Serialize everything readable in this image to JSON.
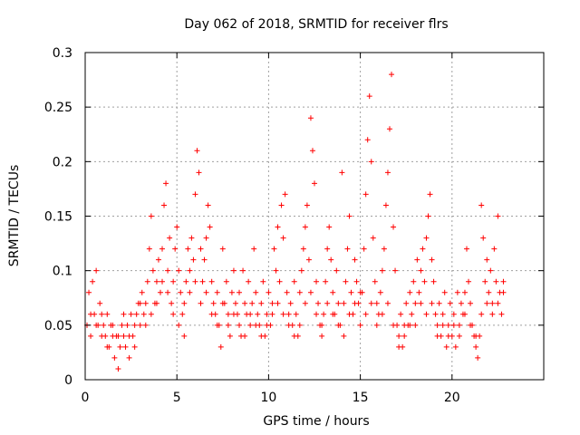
{
  "chart_data": {
    "type": "scatter",
    "title": "Day 062 of 2018, SRMTID for receiver flrs",
    "xlabel": "GPS time / hours",
    "ylabel": "SRMTID / TECUs",
    "xlim": [
      0,
      25
    ],
    "ylim": [
      0,
      0.3
    ],
    "x_ticks": [
      "0",
      "5",
      "10",
      "15",
      "20"
    ],
    "y_ticks": [
      "0",
      "0.05",
      "0.1",
      "0.15",
      "0.2",
      "0.25",
      "0.3"
    ],
    "grid": true,
    "marker": "plus",
    "color": "#ff0000",
    "series": [
      {
        "points": [
          [
            0.1,
            0.05
          ],
          [
            0.2,
            0.08
          ],
          [
            0.3,
            0.06
          ],
          [
            0.4,
            0.09
          ],
          [
            0.5,
            0.06
          ],
          [
            0.6,
            0.1
          ],
          [
            0.7,
            0.05
          ],
          [
            0.8,
            0.07
          ],
          [
            0.9,
            0.06
          ],
          [
            1.0,
            0.05
          ],
          [
            1.1,
            0.04
          ],
          [
            1.2,
            0.06
          ],
          [
            1.3,
            0.03
          ],
          [
            1.4,
            0.05
          ],
          [
            1.5,
            0.04
          ],
          [
            1.6,
            0.02
          ],
          [
            1.7,
            0.04
          ],
          [
            1.8,
            0.01
          ],
          [
            1.9,
            0.03
          ],
          [
            2.0,
            0.05
          ],
          [
            2.1,
            0.04
          ],
          [
            2.2,
            0.03
          ],
          [
            2.3,
            0.05
          ],
          [
            2.4,
            0.02
          ],
          [
            2.5,
            0.06
          ],
          [
            2.6,
            0.04
          ],
          [
            2.7,
            0.05
          ],
          [
            2.8,
            0.06
          ],
          [
            2.9,
            0.07
          ],
          [
            3.0,
            0.05
          ],
          [
            3.1,
            0.08
          ],
          [
            3.2,
            0.06
          ],
          [
            3.3,
            0.07
          ],
          [
            3.4,
            0.09
          ],
          [
            3.5,
            0.12
          ],
          [
            3.6,
            0.15
          ],
          [
            3.7,
            0.1
          ],
          [
            3.8,
            0.07
          ],
          [
            3.9,
            0.09
          ],
          [
            4.0,
            0.11
          ],
          [
            4.1,
            0.08
          ],
          [
            4.2,
            0.12
          ],
          [
            4.3,
            0.16
          ],
          [
            4.4,
            0.18
          ],
          [
            4.5,
            0.1
          ],
          [
            4.6,
            0.13
          ],
          [
            4.7,
            0.07
          ],
          [
            4.8,
            0.09
          ],
          [
            4.9,
            0.12
          ],
          [
            5.0,
            0.14
          ],
          [
            5.1,
            0.1
          ],
          [
            5.2,
            0.08
          ],
          [
            5.3,
            0.06
          ],
          [
            5.4,
            0.04
          ],
          [
            5.5,
            0.09
          ],
          [
            5.6,
            0.12
          ],
          [
            5.7,
            0.1
          ],
          [
            5.8,
            0.13
          ],
          [
            5.9,
            0.11
          ],
          [
            6.0,
            0.17
          ],
          [
            6.1,
            0.21
          ],
          [
            6.2,
            0.19
          ],
          [
            6.3,
            0.12
          ],
          [
            6.4,
            0.09
          ],
          [
            6.5,
            0.11
          ],
          [
            6.6,
            0.13
          ],
          [
            6.7,
            0.16
          ],
          [
            6.8,
            0.14
          ],
          [
            6.9,
            0.09
          ],
          [
            7.0,
            0.07
          ],
          [
            7.1,
            0.06
          ],
          [
            7.2,
            0.08
          ],
          [
            7.3,
            0.05
          ],
          [
            7.4,
            0.03
          ],
          [
            7.5,
            0.12
          ],
          [
            7.6,
            0.07
          ],
          [
            7.7,
            0.09
          ],
          [
            7.8,
            0.06
          ],
          [
            7.9,
            0.04
          ],
          [
            8.0,
            0.08
          ],
          [
            8.1,
            0.1
          ],
          [
            8.2,
            0.07
          ],
          [
            8.3,
            0.06
          ],
          [
            8.4,
            0.08
          ],
          [
            8.5,
            0.04
          ],
          [
            8.6,
            0.1
          ],
          [
            8.7,
            0.07
          ],
          [
            8.8,
            0.06
          ],
          [
            8.9,
            0.09
          ],
          [
            9.0,
            0.05
          ],
          [
            9.1,
            0.07
          ],
          [
            9.2,
            0.12
          ],
          [
            9.3,
            0.08
          ],
          [
            9.4,
            0.06
          ],
          [
            9.5,
            0.05
          ],
          [
            9.6,
            0.07
          ],
          [
            9.7,
            0.09
          ],
          [
            9.8,
            0.04
          ],
          [
            9.9,
            0.06
          ],
          [
            10.0,
            0.08
          ],
          [
            10.1,
            0.05
          ],
          [
            10.2,
            0.07
          ],
          [
            10.3,
            0.12
          ],
          [
            10.4,
            0.1
          ],
          [
            10.5,
            0.14
          ],
          [
            10.6,
            0.09
          ],
          [
            10.7,
            0.16
          ],
          [
            10.8,
            0.13
          ],
          [
            10.9,
            0.17
          ],
          [
            11.0,
            0.08
          ],
          [
            11.1,
            0.06
          ],
          [
            11.2,
            0.07
          ],
          [
            11.3,
            0.05
          ],
          [
            11.4,
            0.09
          ],
          [
            11.5,
            0.06
          ],
          [
            11.6,
            0.04
          ],
          [
            11.7,
            0.08
          ],
          [
            11.8,
            0.1
          ],
          [
            11.9,
            0.12
          ],
          [
            12.0,
            0.14
          ],
          [
            12.1,
            0.16
          ],
          [
            12.2,
            0.11
          ],
          [
            12.3,
            0.24
          ],
          [
            12.4,
            0.21
          ],
          [
            12.5,
            0.18
          ],
          [
            12.6,
            0.09
          ],
          [
            12.7,
            0.07
          ],
          [
            12.8,
            0.05
          ],
          [
            12.9,
            0.04
          ],
          [
            13.0,
            0.06
          ],
          [
            13.1,
            0.09
          ],
          [
            13.2,
            0.12
          ],
          [
            13.3,
            0.14
          ],
          [
            13.4,
            0.11
          ],
          [
            13.5,
            0.08
          ],
          [
            13.6,
            0.06
          ],
          [
            13.7,
            0.1
          ],
          [
            13.8,
            0.07
          ],
          [
            13.9,
            0.05
          ],
          [
            14.0,
            0.19
          ],
          [
            14.1,
            0.07
          ],
          [
            14.2,
            0.09
          ],
          [
            14.3,
            0.12
          ],
          [
            14.4,
            0.15
          ],
          [
            14.5,
            0.08
          ],
          [
            14.6,
            0.06
          ],
          [
            14.7,
            0.11
          ],
          [
            14.8,
            0.09
          ],
          [
            14.9,
            0.07
          ],
          [
            15.0,
            0.05
          ],
          [
            15.1,
            0.08
          ],
          [
            15.2,
            0.12
          ],
          [
            15.3,
            0.17
          ],
          [
            15.4,
            0.22
          ],
          [
            15.5,
            0.26
          ],
          [
            15.6,
            0.2
          ],
          [
            15.7,
            0.13
          ],
          [
            15.8,
            0.09
          ],
          [
            15.9,
            0.07
          ],
          [
            16.0,
            0.06
          ],
          [
            16.1,
            0.08
          ],
          [
            16.2,
            0.1
          ],
          [
            16.3,
            0.12
          ],
          [
            16.4,
            0.16
          ],
          [
            16.5,
            0.19
          ],
          [
            16.6,
            0.23
          ],
          [
            16.7,
            0.28
          ],
          [
            16.8,
            0.14
          ],
          [
            16.9,
            0.1
          ],
          [
            17.0,
            0.05
          ],
          [
            17.1,
            0.04
          ],
          [
            17.2,
            0.06
          ],
          [
            17.3,
            0.03
          ],
          [
            17.4,
            0.05
          ],
          [
            17.5,
            0.07
          ],
          [
            17.6,
            0.05
          ],
          [
            17.7,
            0.08
          ],
          [
            17.8,
            0.06
          ],
          [
            17.9,
            0.09
          ],
          [
            18.0,
            0.07
          ],
          [
            18.1,
            0.11
          ],
          [
            18.2,
            0.08
          ],
          [
            18.3,
            0.1
          ],
          [
            18.4,
            0.12
          ],
          [
            18.5,
            0.09
          ],
          [
            18.6,
            0.13
          ],
          [
            18.7,
            0.15
          ],
          [
            18.8,
            0.17
          ],
          [
            18.9,
            0.11
          ],
          [
            19.0,
            0.09
          ],
          [
            19.1,
            0.06
          ],
          [
            19.2,
            0.05
          ],
          [
            19.3,
            0.07
          ],
          [
            19.4,
            0.04
          ],
          [
            19.5,
            0.06
          ],
          [
            19.6,
            0.08
          ],
          [
            19.7,
            0.03
          ],
          [
            19.8,
            0.05
          ],
          [
            19.9,
            0.07
          ],
          [
            20.0,
            0.04
          ],
          [
            20.1,
            0.06
          ],
          [
            20.2,
            0.03
          ],
          [
            20.3,
            0.08
          ],
          [
            20.4,
            0.05
          ],
          [
            20.5,
            0.07
          ],
          [
            20.6,
            0.06
          ],
          [
            20.7,
            0.08
          ],
          [
            20.8,
            0.12
          ],
          [
            20.9,
            0.09
          ],
          [
            21.0,
            0.07
          ],
          [
            21.1,
            0.05
          ],
          [
            21.2,
            0.04
          ],
          [
            21.3,
            0.03
          ],
          [
            21.4,
            0.02
          ],
          [
            21.5,
            0.04
          ],
          [
            21.6,
            0.16
          ],
          [
            21.7,
            0.13
          ],
          [
            21.8,
            0.09
          ],
          [
            21.9,
            0.11
          ],
          [
            22.0,
            0.08
          ],
          [
            22.1,
            0.1
          ],
          [
            22.2,
            0.07
          ],
          [
            22.3,
            0.12
          ],
          [
            22.4,
            0.09
          ],
          [
            22.5,
            0.15
          ],
          [
            22.6,
            0.08
          ],
          [
            22.7,
            0.06
          ],
          [
            22.8,
            0.09
          ],
          [
            0.3,
            0.04
          ],
          [
            0.6,
            0.05
          ],
          [
            0.9,
            0.04
          ],
          [
            1.2,
            0.03
          ],
          [
            1.5,
            0.05
          ],
          [
            1.8,
            0.04
          ],
          [
            2.1,
            0.06
          ],
          [
            2.4,
            0.04
          ],
          [
            2.7,
            0.03
          ],
          [
            3.0,
            0.07
          ],
          [
            3.3,
            0.05
          ],
          [
            3.6,
            0.06
          ],
          [
            3.9,
            0.07
          ],
          [
            4.2,
            0.09
          ],
          [
            4.5,
            0.08
          ],
          [
            4.8,
            0.06
          ],
          [
            5.1,
            0.05
          ],
          [
            5.4,
            0.07
          ],
          [
            5.7,
            0.08
          ],
          [
            6.0,
            0.09
          ],
          [
            6.3,
            0.07
          ],
          [
            6.6,
            0.08
          ],
          [
            6.9,
            0.06
          ],
          [
            7.2,
            0.05
          ],
          [
            7.5,
            0.07
          ],
          [
            7.8,
            0.05
          ],
          [
            8.1,
            0.06
          ],
          [
            8.4,
            0.05
          ],
          [
            8.7,
            0.04
          ],
          [
            9.0,
            0.06
          ],
          [
            9.3,
            0.05
          ],
          [
            9.6,
            0.04
          ],
          [
            9.9,
            0.05
          ],
          [
            10.2,
            0.06
          ],
          [
            10.5,
            0.07
          ],
          [
            10.8,
            0.06
          ],
          [
            11.1,
            0.05
          ],
          [
            11.4,
            0.04
          ],
          [
            11.7,
            0.05
          ],
          [
            12.0,
            0.07
          ],
          [
            12.3,
            0.08
          ],
          [
            12.6,
            0.06
          ],
          [
            12.9,
            0.05
          ],
          [
            13.2,
            0.07
          ],
          [
            13.5,
            0.06
          ],
          [
            13.8,
            0.05
          ],
          [
            14.1,
            0.04
          ],
          [
            14.4,
            0.06
          ],
          [
            14.7,
            0.07
          ],
          [
            15.0,
            0.08
          ],
          [
            15.3,
            0.06
          ],
          [
            15.6,
            0.07
          ],
          [
            15.9,
            0.05
          ],
          [
            16.2,
            0.06
          ],
          [
            16.5,
            0.07
          ],
          [
            16.8,
            0.05
          ],
          [
            17.1,
            0.03
          ],
          [
            17.4,
            0.04
          ],
          [
            17.7,
            0.05
          ],
          [
            18.0,
            0.05
          ],
          [
            18.3,
            0.07
          ],
          [
            18.6,
            0.06
          ],
          [
            18.9,
            0.07
          ],
          [
            19.2,
            0.04
          ],
          [
            19.5,
            0.05
          ],
          [
            19.8,
            0.04
          ],
          [
            20.1,
            0.05
          ],
          [
            20.4,
            0.04
          ],
          [
            20.7,
            0.06
          ],
          [
            21.0,
            0.05
          ],
          [
            21.3,
            0.04
          ],
          [
            21.6,
            0.06
          ],
          [
            21.9,
            0.07
          ],
          [
            22.2,
            0.06
          ],
          [
            22.5,
            0.07
          ],
          [
            22.8,
            0.08
          ]
        ]
      }
    ]
  }
}
